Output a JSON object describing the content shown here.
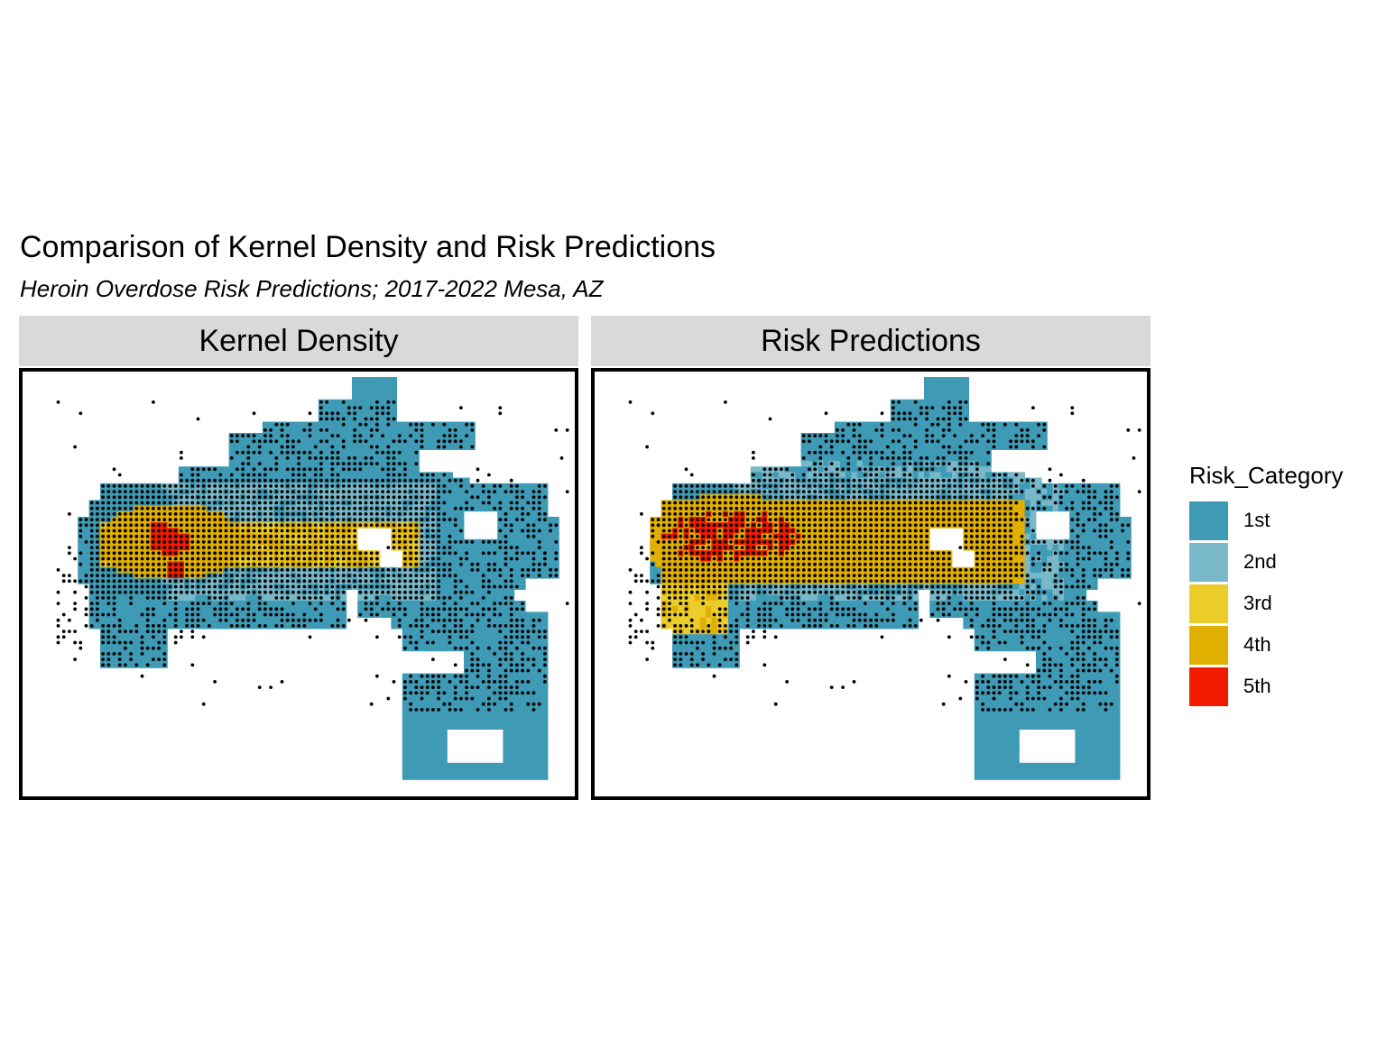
{
  "plot": {
    "title": "Comparison of Kernel Density and Risk Predictions",
    "subtitle": "Heroin Overdose Risk Predictions; 2017-2022 Mesa, AZ"
  },
  "panels": [
    {
      "label": "Kernel Density"
    },
    {
      "label": "Risk Predictions"
    }
  ],
  "legend": {
    "title": "Risk_Category",
    "items": [
      {
        "label": "1st",
        "color": "#3e9ab5"
      },
      {
        "label": "2nd",
        "color": "#79b8c8"
      },
      {
        "label": "3rd",
        "color": "#ebcc2a"
      },
      {
        "label": "4th",
        "color": "#e1af00"
      },
      {
        "label": "5th",
        "color": "#f21a00"
      }
    ]
  },
  "colors": {
    "panel_border": "#000000",
    "strip_background": "#d9d9d9",
    "overdose_points": "#000000"
  },
  "layers": {
    "points": "heroin overdose incidents (black dots)",
    "fill": "grid cells colored by risk category"
  }
}
